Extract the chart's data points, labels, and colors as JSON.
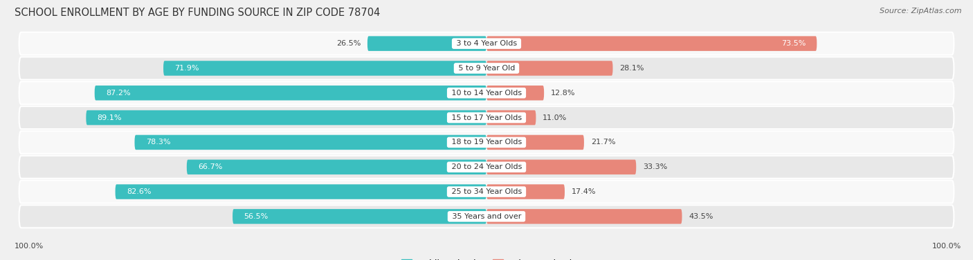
{
  "title": "SCHOOL ENROLLMENT BY AGE BY FUNDING SOURCE IN ZIP CODE 78704",
  "source": "Source: ZipAtlas.com",
  "categories": [
    "3 to 4 Year Olds",
    "5 to 9 Year Old",
    "10 to 14 Year Olds",
    "15 to 17 Year Olds",
    "18 to 19 Year Olds",
    "20 to 24 Year Olds",
    "25 to 34 Year Olds",
    "35 Years and over"
  ],
  "public_pct": [
    26.5,
    71.9,
    87.2,
    89.1,
    78.3,
    66.7,
    82.6,
    56.5
  ],
  "private_pct": [
    73.5,
    28.1,
    12.8,
    11.0,
    21.7,
    33.3,
    17.4,
    43.5
  ],
  "public_color": "#3BBFBF",
  "private_color": "#E8877A",
  "bg_color": "#f0f0f0",
  "row_color_odd": "#e8e8e8",
  "row_color_even": "#f8f8f8",
  "axis_label_left": "100.0%",
  "axis_label_right": "100.0%",
  "title_fontsize": 10.5,
  "source_fontsize": 8,
  "bar_label_fontsize": 8,
  "category_fontsize": 8,
  "legend_fontsize": 9
}
